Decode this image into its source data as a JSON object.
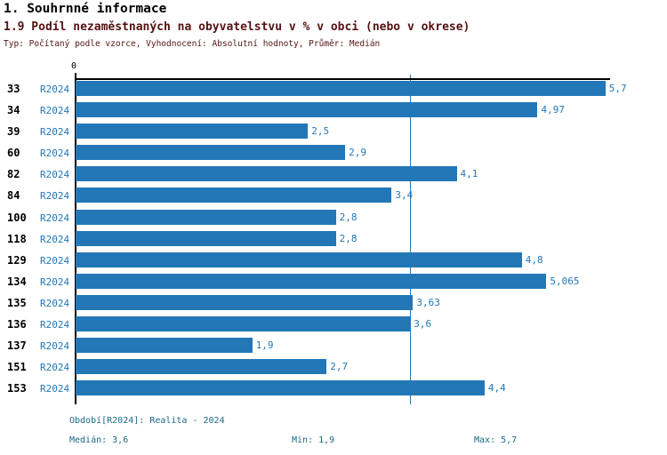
{
  "header": {
    "title": "1. Souhrnné informace",
    "subtitle": "1.9 Podíl nezaměstnaných na obyvatelstvu v % v obci (nebo v okrese)",
    "meta": "Typ: Počítaný podle vzorce, Vyhodnocení: Absolutní hodnoty, Průměr: Medián"
  },
  "chart_data": {
    "type": "bar",
    "orientation": "horizontal",
    "title": "1.9 Podíl nezaměstnaných na obyvatelstvu v % v obci (nebo v okrese)",
    "series_label": "R2024",
    "categories": [
      "33",
      "34",
      "39",
      "60",
      "82",
      "84",
      "100",
      "118",
      "129",
      "134",
      "135",
      "136",
      "137",
      "151",
      "153"
    ],
    "values": [
      5.7,
      4.97,
      2.5,
      2.9,
      4.1,
      3.4,
      2.8,
      2.8,
      4.8,
      5.065,
      3.63,
      3.6,
      1.9,
      2.7,
      4.4
    ],
    "value_labels": [
      "5,7",
      "4,97",
      "2,5",
      "2,9",
      "4,1",
      "3,4",
      "2,8",
      "2,8",
      "4,8",
      "5,065",
      "3,63",
      "3,6",
      "1,9",
      "2,7",
      "4,4"
    ],
    "xlim": [
      0,
      5.75
    ],
    "x_tick_labels": [
      "0"
    ],
    "median_line_value": 3.6,
    "bar_color": "#2377B7",
    "grid": false,
    "legend_position": "none"
  },
  "footer": {
    "period": "Období[R2024]: Realita - 2024",
    "median": "Medián: 3,6",
    "min": "Min: 1,9",
    "max": "Max: 5,7"
  },
  "colors": {
    "title": "#000000",
    "subtitle": "#561212",
    "bar_blue": "#2377B7",
    "footer_teal": "#1A6B85",
    "axis_black": "#000000"
  }
}
